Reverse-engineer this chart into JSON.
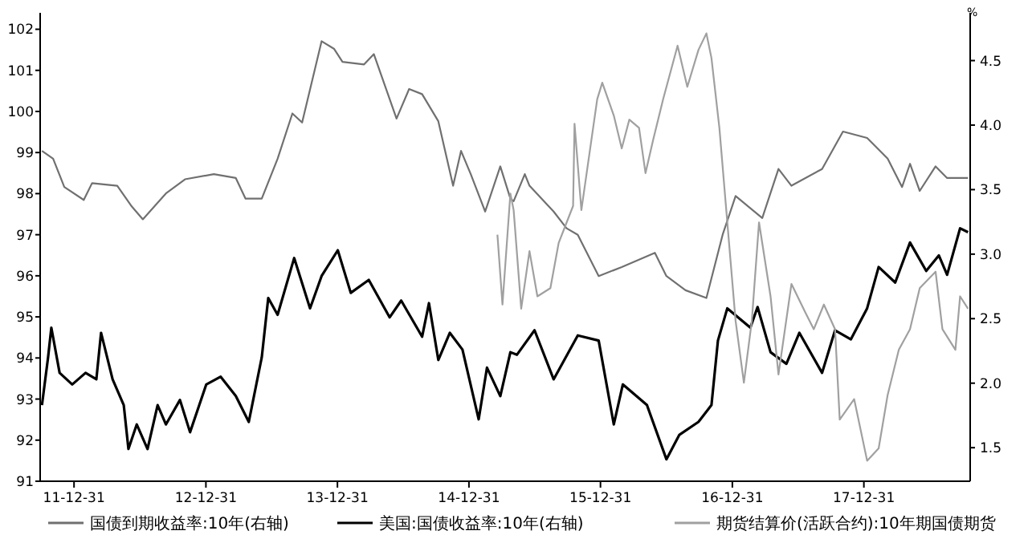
{
  "chart_data": {
    "type": "line",
    "y2label": "%",
    "legend": "bottom",
    "grid": false,
    "marker": "none",
    "line_style": "solid",
    "xlim": [
      "2011-09-28",
      "2018-10-22"
    ],
    "xticks": [
      {
        "value": "2011-12-31",
        "label": "11-12-31"
      },
      {
        "value": "2012-12-31",
        "label": "12-12-31"
      },
      {
        "value": "2013-12-31",
        "label": "13-12-31"
      },
      {
        "value": "2014-12-31",
        "label": "14-12-31"
      },
      {
        "value": "2015-12-31",
        "label": "15-12-31"
      },
      {
        "value": "2016-12-31",
        "label": "16-12-31"
      },
      {
        "value": "2017-12-31",
        "label": "17-12-31"
      }
    ],
    "ylim": [
      91,
      102.4
    ],
    "yticks": [
      91,
      92,
      93,
      94,
      95,
      96,
      97,
      98,
      99,
      100,
      101,
      102
    ],
    "y2lim": [
      1.24,
      4.87
    ],
    "y2ticks": [
      1.5,
      {
        "value": 2,
        "label": "2.0"
      },
      2.5,
      {
        "value": 3,
        "label": "3.0"
      },
      3.5,
      {
        "value": 4,
        "label": "4.0"
      },
      4.5
    ],
    "series": [
      {
        "name": "国债到期收益率:10年(右轴)",
        "color": "#707070",
        "axis": "y2",
        "x": [
          "2011-10-03",
          "2011-11-03",
          "2011-12-04",
          "2012-01-27",
          "2012-02-19",
          "2012-04-29",
          "2012-06-08",
          "2012-07-09",
          "2012-09-11",
          "2012-11-03",
          "2013-01-22",
          "2013-03-24",
          "2013-04-20",
          "2013-06-04",
          "2013-07-18",
          "2013-08-28",
          "2013-09-24",
          "2013-11-17",
          "2013-12-22",
          "2014-01-14",
          "2014-03-15",
          "2014-04-11",
          "2014-06-13",
          "2014-07-18",
          "2014-08-23",
          "2014-10-07",
          "2014-11-17",
          "2014-12-09",
          "2015-01-05",
          "2015-02-14",
          "2015-03-28",
          "2015-04-25",
          "2015-05-04",
          "2015-06-04",
          "2015-06-17",
          "2015-08-23",
          "2015-09-28",
          "2015-10-29",
          "2015-12-26",
          "2016-02-28",
          "2016-05-30",
          "2016-07-01",
          "2016-08-23",
          "2016-10-20",
          "2016-12-04",
          "2017-01-09",
          "2017-03-24",
          "2017-05-08",
          "2017-06-13",
          "2017-09-06",
          "2017-11-03",
          "2018-01-09",
          "2018-03-07",
          "2018-04-16",
          "2018-05-08",
          "2018-06-04",
          "2018-07-18",
          "2018-08-19",
          "2018-10-16"
        ],
        "values": [
          3.8,
          3.74,
          3.52,
          3.42,
          3.55,
          3.53,
          3.37,
          3.27,
          3.47,
          3.58,
          3.62,
          3.59,
          3.43,
          3.43,
          3.74,
          4.09,
          4.02,
          4.65,
          4.59,
          4.49,
          4.47,
          4.55,
          4.05,
          4.28,
          4.24,
          4.03,
          3.53,
          3.8,
          3.62,
          3.33,
          3.68,
          3.43,
          3.41,
          3.62,
          3.53,
          3.33,
          3.2,
          3.15,
          2.83,
          2.9,
          3.01,
          2.83,
          2.72,
          2.66,
          3.15,
          3.45,
          3.28,
          3.66,
          3.53,
          3.66,
          3.95,
          3.9,
          3.74,
          3.52,
          3.7,
          3.49,
          3.68,
          3.59,
          3.59
        ]
      },
      {
        "name": "美国:国债收益率:10年(右轴)",
        "color": "#000000",
        "axis": "y2",
        "x": [
          "2011-10-03",
          "2011-10-20",
          "2011-10-29",
          "2011-11-21",
          "2011-12-26",
          "2012-02-01",
          "2012-03-02",
          "2012-03-15",
          "2012-04-16",
          "2012-05-17",
          "2012-05-30",
          "2012-06-22",
          "2012-07-22",
          "2012-08-19",
          "2012-09-11",
          "2012-10-20",
          "2012-11-17",
          "2013-01-01",
          "2013-02-10",
          "2013-03-24",
          "2013-04-29",
          "2013-06-04",
          "2013-06-22",
          "2013-07-18",
          "2013-09-02",
          "2013-10-16",
          "2013-11-17",
          "2014-01-01",
          "2014-02-06",
          "2014-03-28",
          "2014-05-25",
          "2014-06-26",
          "2014-08-23",
          "2014-09-11",
          "2014-10-07",
          "2014-11-08",
          "2014-12-13",
          "2015-01-27",
          "2015-02-19",
          "2015-03-28",
          "2015-04-25",
          "2015-05-13",
          "2015-07-01",
          "2015-08-23",
          "2015-10-29",
          "2015-12-26",
          "2016-02-06",
          "2016-03-02",
          "2016-05-08",
          "2016-07-01",
          "2016-08-06",
          "2016-09-28",
          "2016-11-03",
          "2016-11-21",
          "2016-12-17",
          "2017-02-19",
          "2017-03-11",
          "2017-04-16",
          "2017-05-30",
          "2017-07-05",
          "2017-09-06",
          "2017-10-12",
          "2017-11-25",
          "2018-01-09",
          "2018-02-10",
          "2018-03-28",
          "2018-05-08",
          "2018-06-22",
          "2018-07-27",
          "2018-08-19",
          "2018-09-24",
          "2018-10-16"
        ],
        "values": [
          1.83,
          2.2,
          2.43,
          2.08,
          1.99,
          2.08,
          2.03,
          2.39,
          2.03,
          1.83,
          1.49,
          1.68,
          1.49,
          1.83,
          1.68,
          1.87,
          1.62,
          1.99,
          2.05,
          1.9,
          1.7,
          2.2,
          2.66,
          2.53,
          2.97,
          2.58,
          2.83,
          3.03,
          2.7,
          2.8,
          2.51,
          2.64,
          2.36,
          2.62,
          2.18,
          2.39,
          2.26,
          1.72,
          2.12,
          1.9,
          2.24,
          2.22,
          2.41,
          2.03,
          2.37,
          2.33,
          1.68,
          1.99,
          1.83,
          1.41,
          1.6,
          1.7,
          1.83,
          2.33,
          2.58,
          2.43,
          2.59,
          2.24,
          2.15,
          2.39,
          2.08,
          2.41,
          2.34,
          2.58,
          2.9,
          2.78,
          3.09,
          2.87,
          2.99,
          2.84,
          3.2,
          3.17
        ]
      },
      {
        "name": "期货结算价(活跃合约):10年期国债期货",
        "color": "#a0a0a0",
        "x": [
          "2015-03-20",
          "2015-04-03",
          "2015-04-25",
          "2015-05-04",
          "2015-05-25",
          "2015-06-17",
          "2015-07-09",
          "2015-08-14",
          "2015-09-06",
          "2015-10-16",
          "2015-10-20",
          "2015-11-08",
          "2015-12-22",
          "2016-01-05",
          "2016-02-06",
          "2016-02-28",
          "2016-03-20",
          "2016-04-16",
          "2016-05-04",
          "2016-05-25",
          "2016-06-22",
          "2016-08-01",
          "2016-08-28",
          "2016-09-28",
          "2016-10-20",
          "2016-11-03",
          "2016-11-25",
          "2016-12-17",
          "2017-01-09",
          "2017-02-01",
          "2017-02-23",
          "2017-03-15",
          "2017-04-16",
          "2017-05-08",
          "2017-06-13",
          "2017-07-22",
          "2017-08-14",
          "2017-09-11",
          "2017-10-12",
          "2017-10-25",
          "2017-12-04",
          "2018-01-09",
          "2018-02-10",
          "2018-03-07",
          "2018-04-07",
          "2018-05-08",
          "2018-06-04",
          "2018-07-18",
          "2018-08-06",
          "2018-09-11",
          "2018-09-24",
          "2018-10-16"
        ],
        "values": [
          97.0,
          95.3,
          98.0,
          97.6,
          95.2,
          96.6,
          95.5,
          95.7,
          96.8,
          97.7,
          99.7,
          97.6,
          100.3,
          100.7,
          99.9,
          99.1,
          99.8,
          99.6,
          98.5,
          99.3,
          100.3,
          101.6,
          100.6,
          101.5,
          101.9,
          101.3,
          99.6,
          97.3,
          94.9,
          93.4,
          94.9,
          97.3,
          95.5,
          93.6,
          95.8,
          95.1,
          94.7,
          95.3,
          94.7,
          92.5,
          93.0,
          91.5,
          91.8,
          93.1,
          94.2,
          94.7,
          95.7,
          96.1,
          94.7,
          94.2,
          95.5,
          95.2
        ]
      }
    ]
  }
}
